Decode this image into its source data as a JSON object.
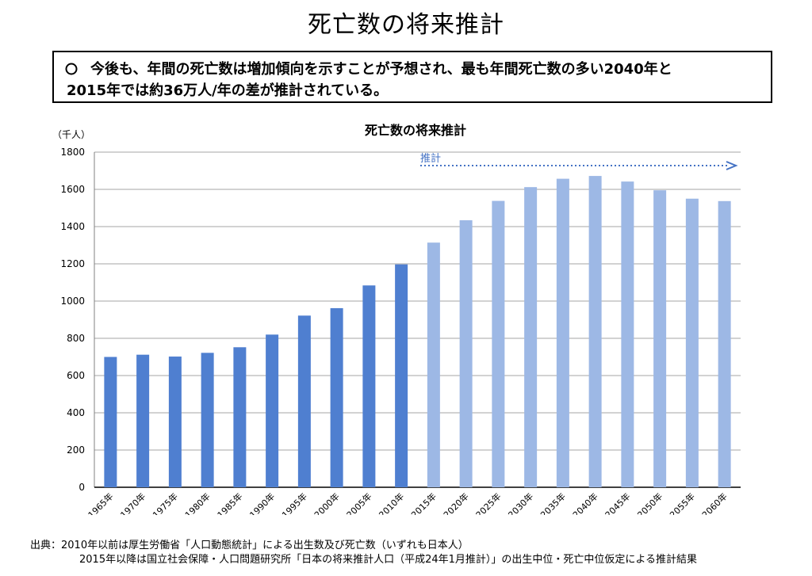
{
  "page": {
    "title": "死亡数の将来推計",
    "summary_line1": "今後も、年間の死亡数は増加傾向を示すことが予想され、最も年間死亡数の多い2040年と",
    "summary_line2": "2015年では約36万人/年の差が推計されている。",
    "source_line1": "出典：2010年以前は厚生労働省「人口動態統計」による出生数及び死亡数（いずれも日本人）",
    "source_line2": "2015年以降は国立社会保障・人口問題研究所「日本の将来推計人口（平成24年1月推計）」の出生中位・死亡中位仮定による推計結果"
  },
  "chart_data": {
    "type": "bar",
    "title": "死亡数の将来推計",
    "ylabel": "（千人）",
    "xlabel": "",
    "ylim": [
      0,
      1800
    ],
    "yticks": [
      0,
      200,
      400,
      600,
      800,
      1000,
      1200,
      1400,
      1600,
      1800
    ],
    "grid": true,
    "categories": [
      "1965年",
      "1970年",
      "1975年",
      "1980年",
      "1985年",
      "1990年",
      "1995年",
      "2000年",
      "2005年",
      "2010年",
      "2015年",
      "2020年",
      "2025年",
      "2030年",
      "2035年",
      "2040年",
      "2045年",
      "2050年",
      "2055年",
      "2060年"
    ],
    "values": [
      700,
      712,
      702,
      722,
      752,
      820,
      922,
      962,
      1084,
      1197,
      1314,
      1434,
      1538,
      1612,
      1657,
      1672,
      1642,
      1595,
      1550,
      1537
    ],
    "projection_start_index": 10,
    "projection_label": "推計",
    "colors": {
      "actual": "#4f7fd0",
      "projection": "#9db8e5",
      "grid": "#a6a6a6",
      "arrow": "#4472c4"
    }
  }
}
